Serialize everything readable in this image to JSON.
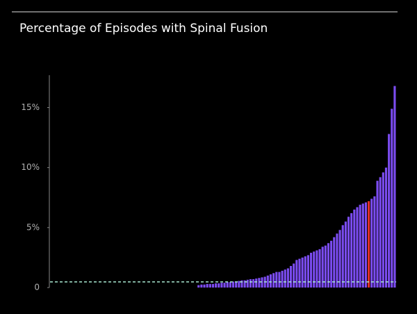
{
  "chart_data": {
    "type": "bar",
    "title": "Percentage of Episodes with Spinal Fusion",
    "categories": [
      null,
      null,
      null,
      null,
      null,
      null,
      null,
      null,
      null,
      null,
      null,
      null,
      null,
      null,
      null,
      null,
      null,
      null,
      null,
      null,
      null,
      null,
      null,
      null,
      null,
      null,
      null,
      null,
      null,
      null,
      null,
      null,
      null,
      null,
      null,
      null,
      null,
      null,
      null,
      null,
      null,
      null,
      null,
      null,
      null,
      null,
      null,
      null,
      null,
      null,
      null,
      null,
      null,
      null,
      null,
      null,
      null,
      null,
      null,
      null,
      null,
      null,
      null,
      null,
      null,
      null,
      null,
      null,
      null,
      null,
      null,
      null,
      null,
      null,
      null,
      null,
      null,
      null,
      null,
      null,
      null,
      null,
      null,
      null,
      null,
      null,
      null,
      null,
      null,
      null,
      null,
      null,
      null,
      null,
      null,
      null,
      null,
      null,
      null,
      null,
      null,
      null,
      null,
      null,
      null,
      null,
      null,
      null,
      null,
      null,
      null,
      null,
      null,
      null,
      null,
      null,
      null,
      null,
      null,
      null
    ],
    "values": [
      0,
      0,
      0,
      0,
      0,
      0,
      0,
      0,
      0,
      0,
      0,
      0,
      0,
      0,
      0,
      0,
      0,
      0,
      0,
      0,
      0,
      0,
      0,
      0,
      0,
      0,
      0,
      0,
      0,
      0,
      0,
      0,
      0,
      0,
      0,
      0,
      0,
      0,
      0,
      0,
      0,
      0,
      0,
      0,
      0,
      0,
      0,
      0,
      0,
      0,
      0,
      0.2,
      0.25,
      0.25,
      0.3,
      0.3,
      0.3,
      0.35,
      0.35,
      0.4,
      0.4,
      0.45,
      0.45,
      0.5,
      0.5,
      0.55,
      0.6,
      0.6,
      0.65,
      0.7,
      0.7,
      0.75,
      0.8,
      0.85,
      0.9,
      1.0,
      1.1,
      1.2,
      1.3,
      1.3,
      1.4,
      1.5,
      1.6,
      1.8,
      2.0,
      2.3,
      2.4,
      2.5,
      2.6,
      2.7,
      2.9,
      3.0,
      3.1,
      3.2,
      3.4,
      3.5,
      3.7,
      3.9,
      4.2,
      4.5,
      4.8,
      5.2,
      5.5,
      5.9,
      6.2,
      6.5,
      6.7,
      6.9,
      7.0,
      7.1,
      7.2,
      7.4,
      7.6,
      8.9,
      9.2,
      9.6,
      10.0,
      12.8,
      14.9,
      16.8
    ],
    "color": "#7b4cf0",
    "highlight": {
      "index": 110,
      "color": "#e0302a"
    },
    "reference_line": {
      "value": 0.47,
      "color": "#a8e8cf",
      "style": "dashed"
    },
    "ylim": [
      0,
      17.7
    ],
    "yticks": [
      0,
      {
        "value": 5,
        "label": "5%"
      },
      {
        "value": 10,
        "label": "10%"
      },
      {
        "value": 15,
        "label": "15%"
      }
    ],
    "grid": false
  }
}
